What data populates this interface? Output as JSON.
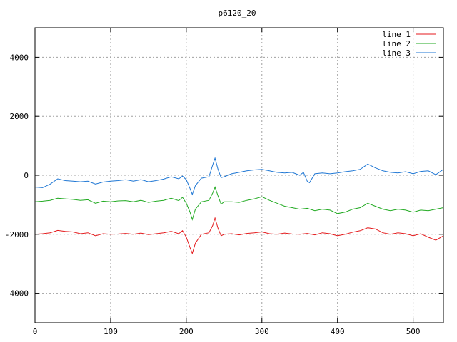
{
  "chart_data": {
    "type": "line",
    "title": "p6120_20",
    "xlabel": "",
    "ylabel": "",
    "xlim": [
      0,
      540
    ],
    "ylim": [
      -5000,
      5000
    ],
    "x_ticks": [
      0,
      100,
      200,
      300,
      400,
      500
    ],
    "y_ticks": [
      -4000,
      -2000,
      0,
      2000,
      4000
    ],
    "grid": true,
    "legend_position": "top-right",
    "series": [
      {
        "name": "line 1",
        "color": "#e41a1c",
        "x": [
          0,
          10,
          20,
          30,
          40,
          50,
          60,
          70,
          80,
          90,
          100,
          110,
          120,
          130,
          140,
          150,
          160,
          170,
          180,
          190,
          195,
          200,
          205,
          208,
          212,
          220,
          230,
          235,
          238,
          242,
          246,
          250,
          260,
          270,
          280,
          290,
          300,
          310,
          320,
          330,
          340,
          350,
          360,
          370,
          380,
          390,
          400,
          410,
          420,
          430,
          440,
          450,
          460,
          470,
          480,
          490,
          500,
          510,
          520,
          530,
          540
        ],
        "y": [
          -2000,
          -1980,
          -1950,
          -1870,
          -1900,
          -1920,
          -1980,
          -1950,
          -2050,
          -1980,
          -2000,
          -1990,
          -1970,
          -2000,
          -1960,
          -2010,
          -1980,
          -1950,
          -1900,
          -1980,
          -1880,
          -2100,
          -2450,
          -2650,
          -2300,
          -2000,
          -1950,
          -1700,
          -1450,
          -1800,
          -2050,
          -2000,
          -1980,
          -2020,
          -1970,
          -1950,
          -1920,
          -1980,
          -2000,
          -1960,
          -1990,
          -2000,
          -1970,
          -2020,
          -1950,
          -1980,
          -2050,
          -2000,
          -1930,
          -1880,
          -1780,
          -1820,
          -1950,
          -2000,
          -1950,
          -1980,
          -2050,
          -1980,
          -2100,
          -2200,
          -2050
        ]
      },
      {
        "name": "line 2",
        "color": "#22aa22",
        "x": [
          0,
          10,
          20,
          30,
          40,
          50,
          60,
          70,
          80,
          90,
          100,
          110,
          120,
          130,
          140,
          150,
          160,
          170,
          180,
          190,
          195,
          200,
          205,
          208,
          212,
          220,
          230,
          235,
          238,
          242,
          246,
          250,
          260,
          270,
          280,
          290,
          300,
          310,
          320,
          330,
          340,
          350,
          360,
          370,
          380,
          390,
          400,
          410,
          420,
          430,
          440,
          450,
          460,
          470,
          480,
          490,
          500,
          510,
          520,
          530,
          540
        ],
        "y": [
          -900,
          -880,
          -850,
          -780,
          -800,
          -820,
          -850,
          -830,
          -950,
          -880,
          -900,
          -870,
          -860,
          -900,
          -850,
          -920,
          -880,
          -850,
          -780,
          -860,
          -750,
          -950,
          -1250,
          -1500,
          -1150,
          -900,
          -850,
          -600,
          -400,
          -700,
          -980,
          -900,
          -900,
          -920,
          -850,
          -800,
          -730,
          -850,
          -950,
          -1050,
          -1100,
          -1150,
          -1120,
          -1200,
          -1150,
          -1180,
          -1300,
          -1250,
          -1150,
          -1100,
          -950,
          -1050,
          -1150,
          -1200,
          -1150,
          -1180,
          -1250,
          -1180,
          -1200,
          -1150,
          -1100
        ]
      },
      {
        "name": "line 3",
        "color": "#1f77d4",
        "x": [
          0,
          10,
          20,
          30,
          40,
          50,
          60,
          70,
          80,
          90,
          100,
          110,
          120,
          130,
          140,
          150,
          160,
          170,
          180,
          190,
          195,
          200,
          205,
          208,
          212,
          220,
          230,
          235,
          238,
          242,
          246,
          250,
          260,
          270,
          280,
          290,
          300,
          310,
          320,
          330,
          340,
          350,
          355,
          360,
          363,
          370,
          380,
          390,
          400,
          410,
          420,
          430,
          440,
          450,
          460,
          470,
          480,
          490,
          500,
          510,
          520,
          530,
          540
        ],
        "y": [
          -400,
          -420,
          -300,
          -120,
          -180,
          -200,
          -220,
          -200,
          -300,
          -230,
          -200,
          -180,
          -150,
          -200,
          -150,
          -220,
          -180,
          -130,
          -50,
          -120,
          -30,
          -150,
          -450,
          -650,
          -350,
          -100,
          -50,
          350,
          580,
          200,
          -80,
          -50,
          50,
          100,
          150,
          180,
          200,
          150,
          100,
          80,
          100,
          0,
          100,
          -200,
          -250,
          50,
          80,
          50,
          80,
          120,
          150,
          200,
          380,
          250,
          150,
          100,
          80,
          120,
          50,
          130,
          150,
          20,
          200
        ]
      }
    ]
  }
}
